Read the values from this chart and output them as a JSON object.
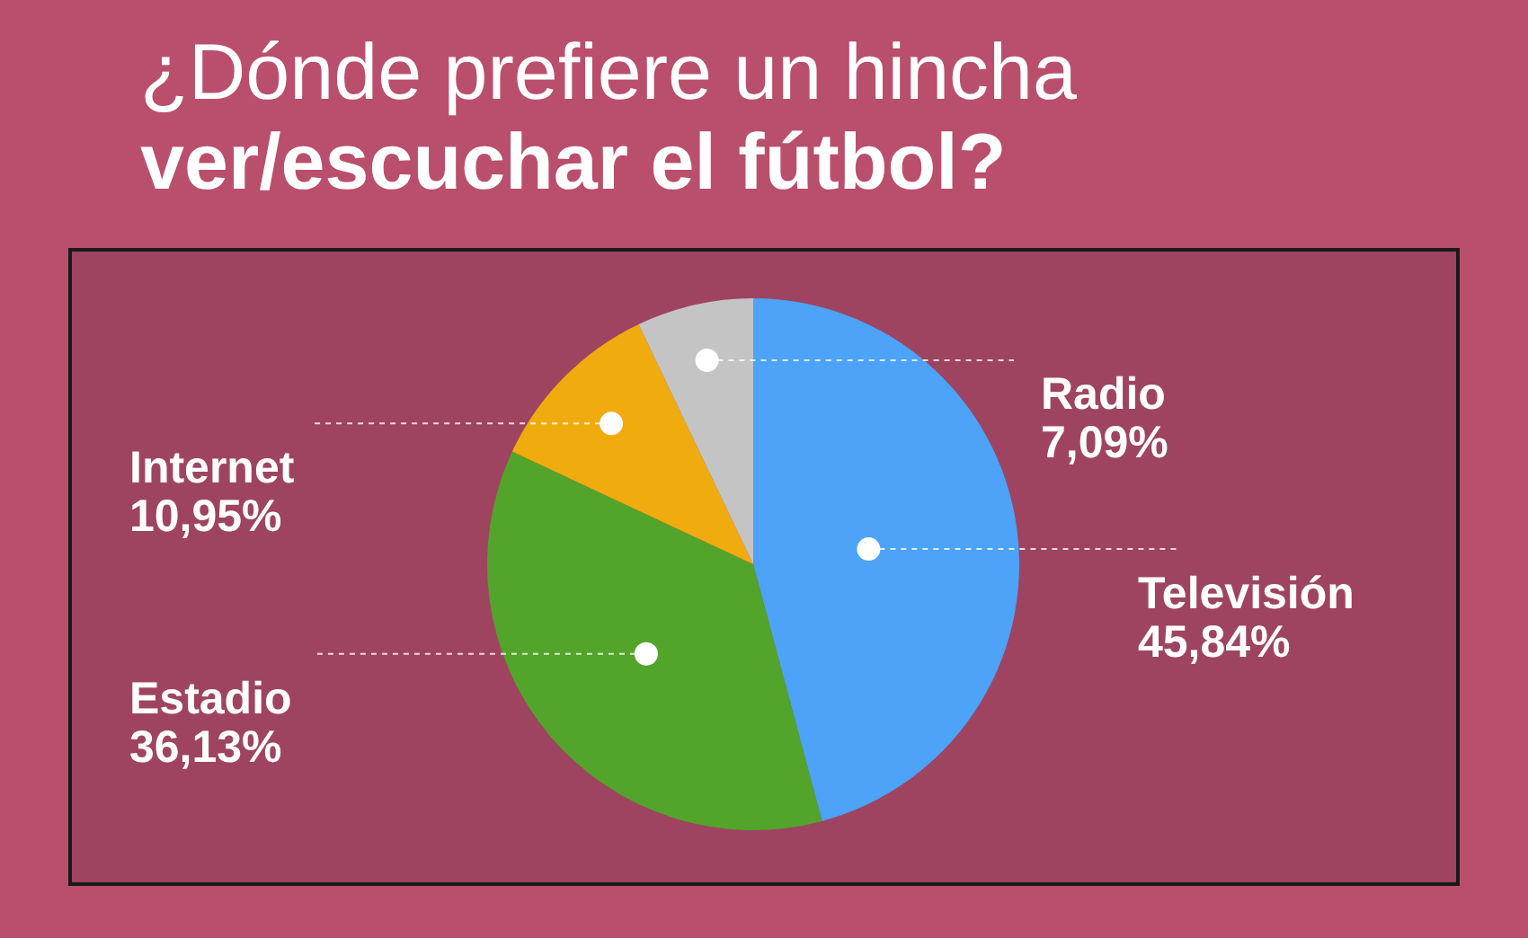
{
  "chart_data": {
    "type": "pie",
    "title": "¿Dónde prefiere un hincha",
    "subtitle": "ver/escuchar el fútbol?",
    "categories": [
      "Televisión",
      "Estadio",
      "Internet",
      "Radio"
    ],
    "values": [
      45.84,
      36.13,
      10.95,
      7.09
    ],
    "colors": [
      "#4da3f7",
      "#52a52a",
      "#f0ac0e",
      "#c4c4c4"
    ],
    "value_labels": [
      "45,84%",
      "36,13%",
      "10,95%",
      "7,09%"
    ],
    "legend": false
  }
}
